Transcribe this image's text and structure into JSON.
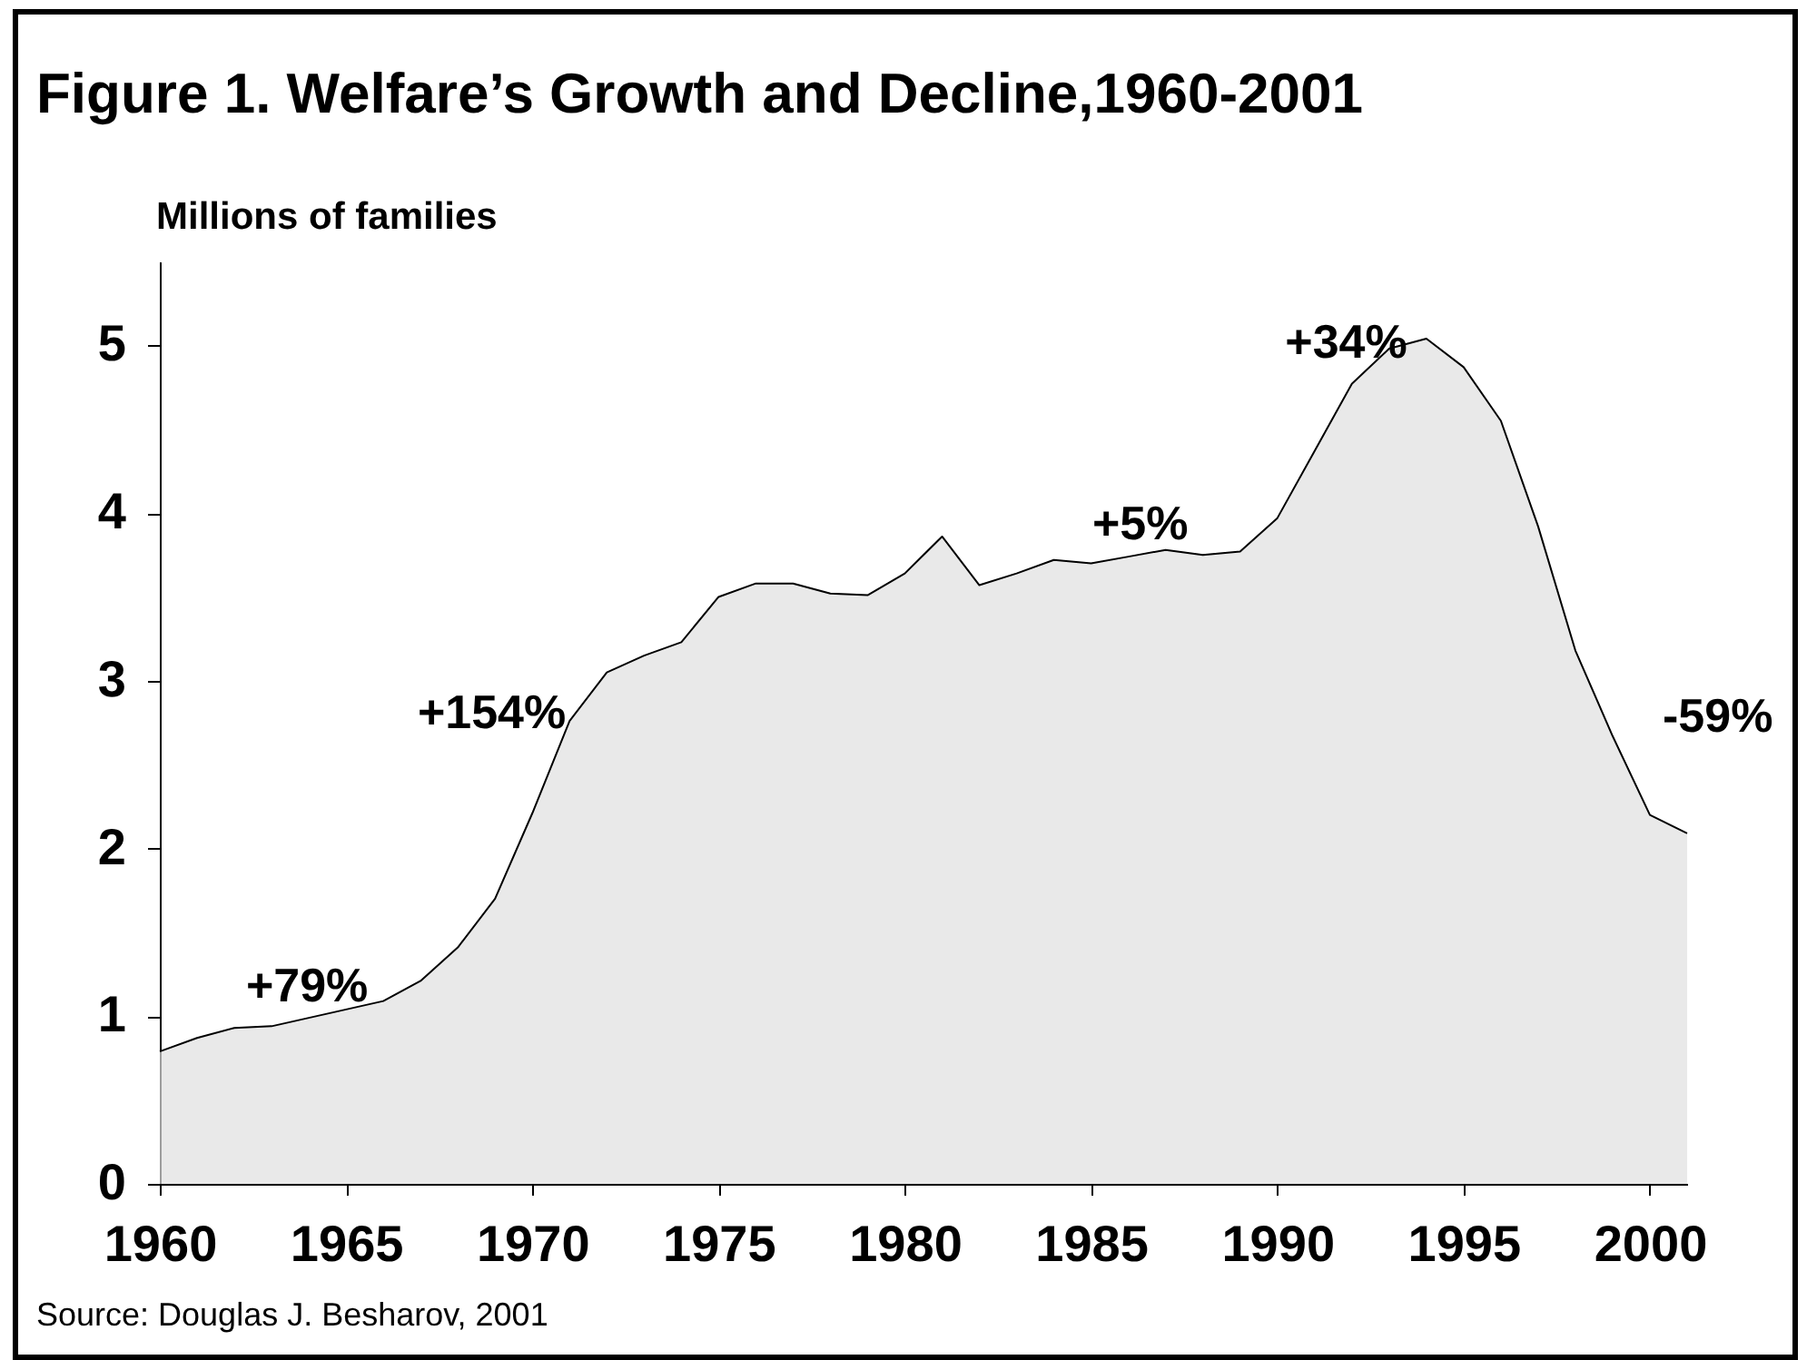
{
  "chart_data": {
    "type": "area",
    "title": "Figure 1. Welfare’s Growth and Decline,1960-2001",
    "ylabel": "Millions of families",
    "x": [
      1960,
      1961,
      1962,
      1963,
      1964,
      1965,
      1966,
      1967,
      1968,
      1969,
      1970,
      1971,
      1972,
      1973,
      1974,
      1975,
      1976,
      1977,
      1978,
      1979,
      1980,
      1981,
      1982,
      1983,
      1984,
      1985,
      1986,
      1987,
      1988,
      1989,
      1990,
      1991,
      1992,
      1993,
      1994,
      1995,
      1996,
      1997,
      1998,
      1999,
      2000,
      2001
    ],
    "series": [
      {
        "color": "#e0e0e0",
        "values": [
          0.79,
          0.87,
          0.93,
          0.94,
          0.99,
          1.04,
          1.09,
          1.21,
          1.41,
          1.7,
          2.21,
          2.76,
          3.05,
          3.15,
          3.23,
          3.5,
          3.58,
          3.58,
          3.52,
          3.51,
          3.64,
          3.86,
          3.57,
          3.64,
          3.72,
          3.7,
          3.74,
          3.78,
          3.75,
          3.77,
          3.97,
          4.37,
          4.77,
          4.98,
          5.04,
          4.87,
          4.55,
          3.92,
          3.18,
          2.67,
          2.2,
          2.09
        ]
      }
    ],
    "xlim": [
      1960,
      2001
    ],
    "xticks": [
      1960,
      1965,
      1970,
      1975,
      1980,
      1985,
      1990,
      1995,
      2000
    ],
    "ylim": [
      0,
      5.5
    ],
    "yticks": [
      0,
      1,
      2,
      3,
      4,
      5
    ],
    "grid": false,
    "annotations": [
      {
        "text": "+79%",
        "x": 1964,
        "y": 0.99
      },
      {
        "text": "+154%",
        "x": 1971,
        "y": 2.76
      },
      {
        "text": "+5%",
        "x": 1987,
        "y": 3.78
      },
      {
        "text": "+34%",
        "x": 1993,
        "y": 4.98
      },
      {
        "text": "-59%",
        "x": 2000,
        "y": 2.2
      },
      "Source: Douglas J. Besharov, 2001"
    ]
  }
}
